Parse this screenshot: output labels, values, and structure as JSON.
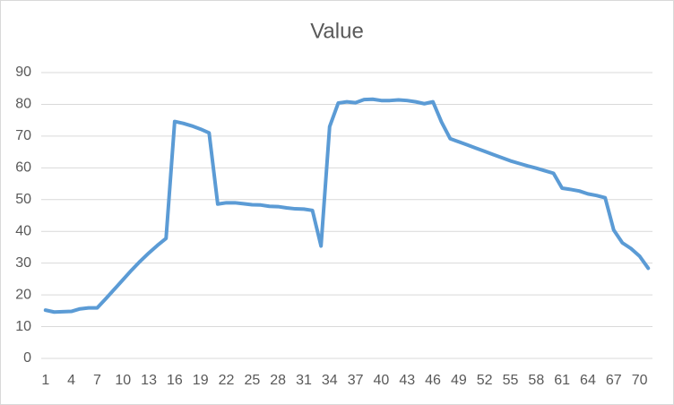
{
  "chart_data": {
    "type": "line",
    "title": "Value",
    "categories": [
      1,
      null,
      null,
      4,
      null,
      null,
      7,
      null,
      null,
      10,
      null,
      null,
      13,
      null,
      null,
      16,
      null,
      null,
      19,
      null,
      null,
      22,
      null,
      null,
      25,
      null,
      null,
      28,
      null,
      null,
      31,
      null,
      null,
      34,
      null,
      null,
      37,
      null,
      null,
      40,
      null,
      null,
      43,
      null,
      null,
      46,
      null,
      null,
      49,
      null,
      null,
      52,
      null,
      null,
      55,
      null,
      null,
      58,
      null,
      null,
      61,
      null,
      null,
      64,
      null,
      null,
      67,
      null,
      null,
      70,
      null
    ],
    "series": [
      {
        "name": "Value",
        "color": "#5b9bd5",
        "values": [
          15.2,
          14.6,
          14.7,
          14.8,
          15.6,
          15.9,
          15.9,
          18.8,
          21.8,
          24.8,
          27.8,
          30.6,
          33.2,
          35.6,
          37.8,
          74.6,
          74,
          73.2,
          72.2,
          71,
          48.6,
          49,
          49,
          48.7,
          48.4,
          48.3,
          47.9,
          47.8,
          47.4,
          47.1,
          47,
          46.6,
          35.4,
          73,
          80.4,
          80.8,
          80.5,
          81.5,
          81.6,
          81.2,
          81.2,
          81.4,
          81.2,
          80.8,
          80.2,
          80.8,
          74.4,
          69.2,
          68.2,
          67.2,
          66.2,
          65.2,
          64.2,
          63.2,
          62.2,
          61.4,
          60.6,
          59.9,
          59.1,
          58.3,
          53.6,
          53.2,
          52.7,
          51.8,
          51.3,
          50.6,
          40.4,
          36.4,
          34.6,
          32.2,
          28.4
        ]
      }
    ],
    "ylim": [
      0,
      90
    ],
    "yticks": [
      0,
      10,
      20,
      30,
      40,
      50,
      60,
      70,
      80,
      90
    ],
    "grid": true
  }
}
